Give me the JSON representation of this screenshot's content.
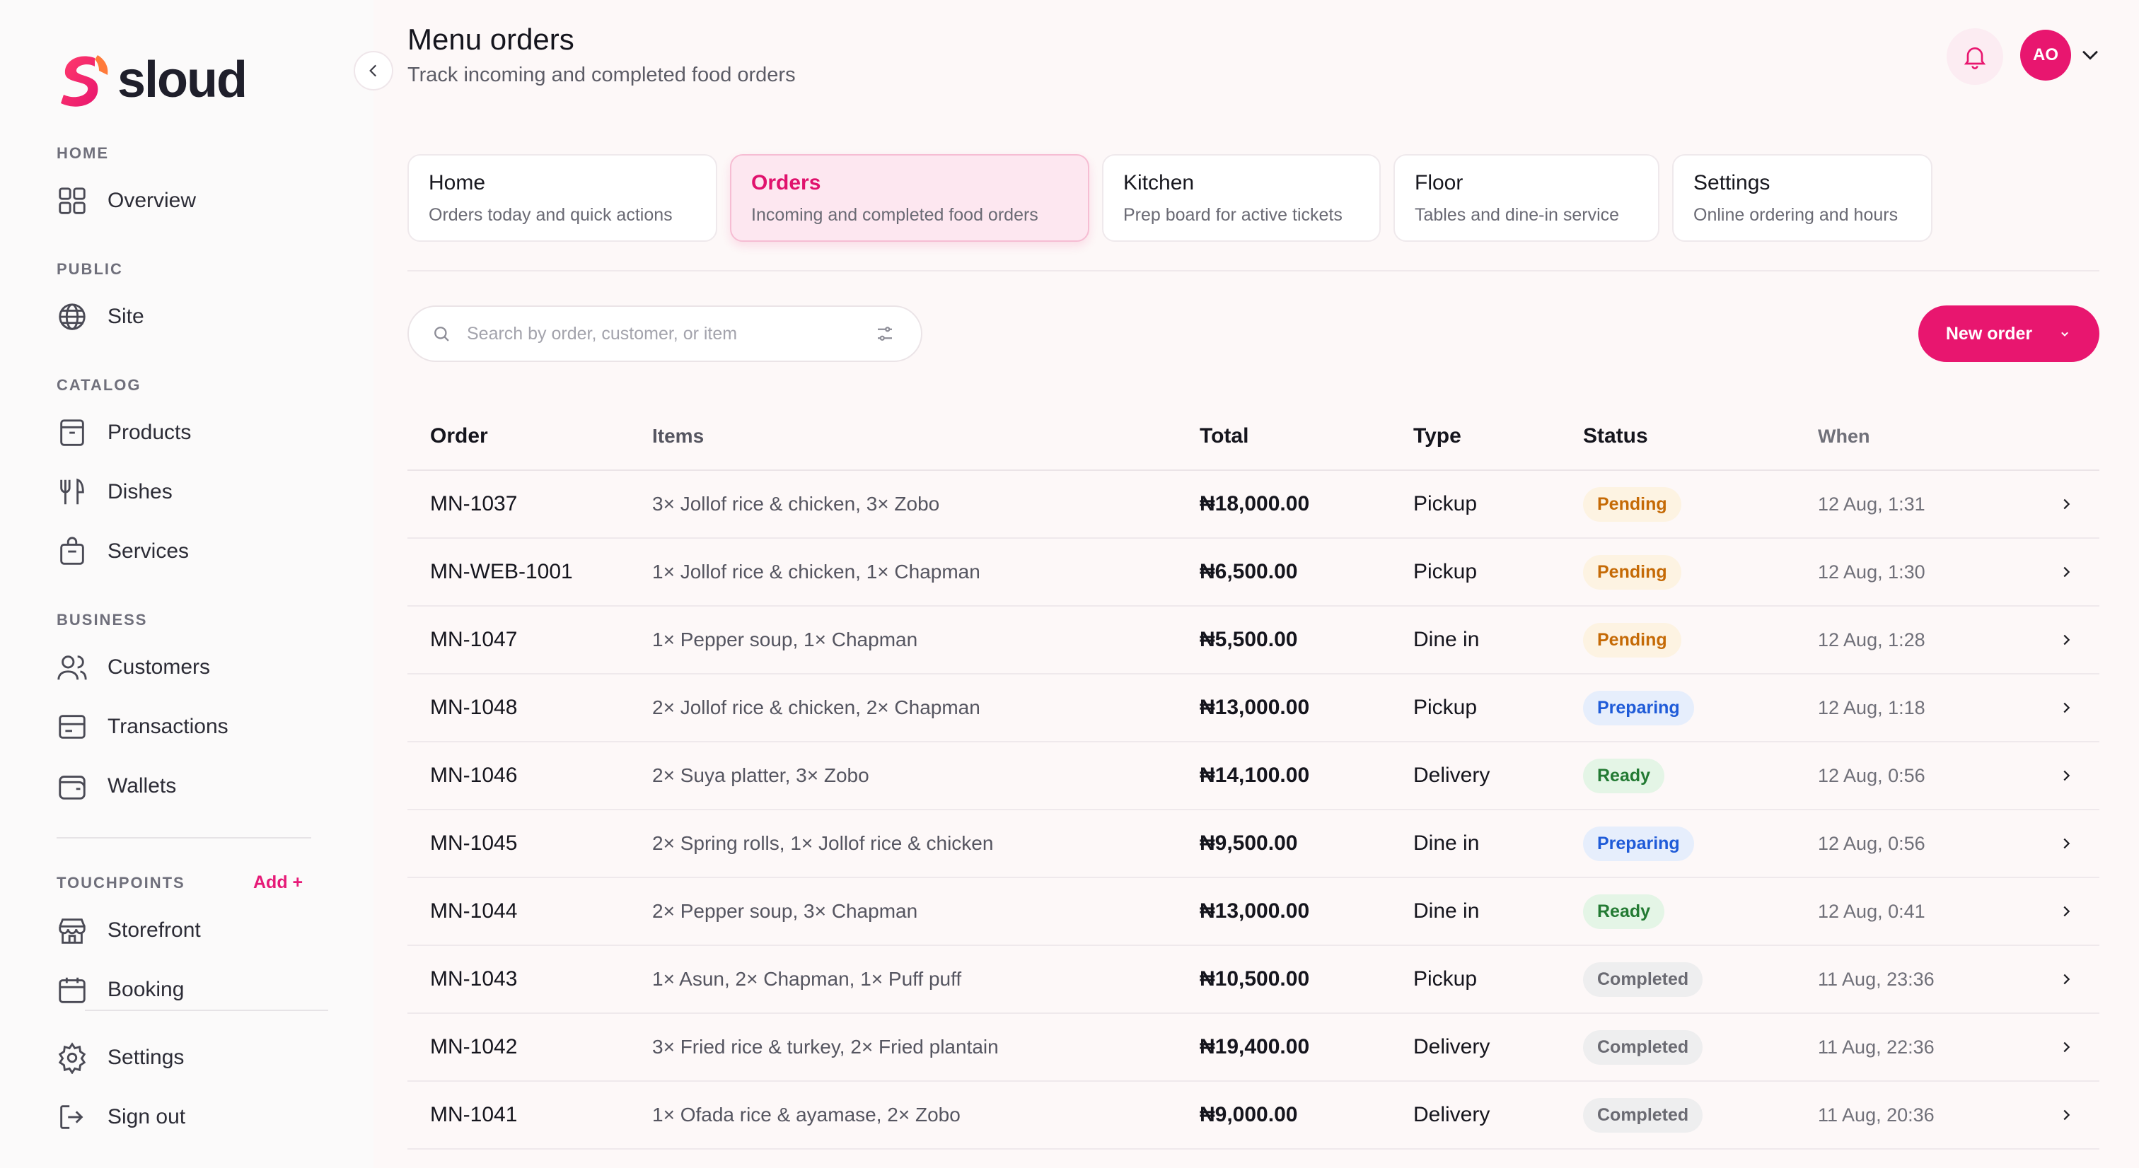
{
  "brand": {
    "name": "sloud",
    "accent": "#e8166f"
  },
  "sidebar": {
    "sections": [
      {
        "label": "HOME",
        "items": [
          {
            "label": "Overview",
            "icon": "grid-icon"
          }
        ]
      },
      {
        "label": "PUBLIC",
        "items": [
          {
            "label": "Site",
            "icon": "globe-icon"
          }
        ]
      },
      {
        "label": "CATALOG",
        "items": [
          {
            "label": "Products",
            "icon": "box-icon"
          },
          {
            "label": "Dishes",
            "icon": "fork-knife-icon"
          },
          {
            "label": "Services",
            "icon": "bag-icon"
          }
        ]
      },
      {
        "label": "BUSINESS",
        "items": [
          {
            "label": "Customers",
            "icon": "users-icon"
          },
          {
            "label": "Transactions",
            "icon": "card-icon"
          },
          {
            "label": "Wallets",
            "icon": "wallet-icon"
          }
        ]
      },
      {
        "label": "TOUCHPOINTS",
        "items": [
          {
            "label": "Storefront",
            "icon": "store-icon"
          },
          {
            "label": "Booking",
            "icon": "calendar-icon"
          }
        ]
      }
    ],
    "touchpoints_add": "Add +",
    "footer": [
      {
        "label": "Settings",
        "icon": "gear-icon"
      },
      {
        "label": "Sign out",
        "icon": "sign-out-icon"
      }
    ]
  },
  "header": {
    "title": "Menu orders",
    "subtitle": "Track incoming and completed food orders",
    "avatar_initials": "AO"
  },
  "tabs": [
    {
      "title": "Home",
      "desc": "Orders today and quick actions",
      "active": false
    },
    {
      "title": "Orders",
      "desc": "Incoming and completed food orders",
      "active": true
    },
    {
      "title": "Kitchen",
      "desc": "Prep board for active tickets",
      "active": false
    },
    {
      "title": "Floor",
      "desc": "Tables and dine-in service",
      "active": false
    },
    {
      "title": "Settings",
      "desc": "Online ordering and hours",
      "active": false
    }
  ],
  "search": {
    "placeholder": "Search by order, customer, or item",
    "value": ""
  },
  "new_order_label": "New order",
  "table": {
    "columns": [
      "Order",
      "Items",
      "Total",
      "Type",
      "Status",
      "When"
    ],
    "rows": [
      {
        "order": "MN-1037",
        "items": "3× Jollof rice & chicken, 3× Zobo",
        "total": "₦18,000.00",
        "type": "Pickup",
        "status": "Pending",
        "when": "12 Aug, 1:31"
      },
      {
        "order": "MN-WEB-1001",
        "items": "1× Jollof rice & chicken, 1× Chapman",
        "total": "₦6,500.00",
        "type": "Pickup",
        "status": "Pending",
        "when": "12 Aug, 1:30"
      },
      {
        "order": "MN-1047",
        "items": "1× Pepper soup, 1× Chapman",
        "total": "₦5,500.00",
        "type": "Dine in",
        "status": "Pending",
        "when": "12 Aug, 1:28"
      },
      {
        "order": "MN-1048",
        "items": "2× Jollof rice & chicken, 2× Chapman",
        "total": "₦13,000.00",
        "type": "Pickup",
        "status": "Preparing",
        "when": "12 Aug, 1:18"
      },
      {
        "order": "MN-1046",
        "items": "2× Suya platter, 3× Zobo",
        "total": "₦14,100.00",
        "type": "Delivery",
        "status": "Ready",
        "when": "12 Aug, 0:56"
      },
      {
        "order": "MN-1045",
        "items": "2× Spring rolls, 1× Jollof rice & chicken",
        "total": "₦9,500.00",
        "type": "Dine in",
        "status": "Preparing",
        "when": "12 Aug, 0:56"
      },
      {
        "order": "MN-1044",
        "items": "2× Pepper soup, 3× Chapman",
        "total": "₦13,000.00",
        "type": "Dine in",
        "status": "Ready",
        "when": "12 Aug, 0:41"
      },
      {
        "order": "MN-1043",
        "items": "1× Asun, 2× Chapman, 1× Puff puff",
        "total": "₦10,500.00",
        "type": "Pickup",
        "status": "Completed",
        "when": "11 Aug, 23:36"
      },
      {
        "order": "MN-1042",
        "items": "3× Fried rice & turkey, 2× Fried plantain",
        "total": "₦19,400.00",
        "type": "Delivery",
        "status": "Completed",
        "when": "11 Aug, 22:36"
      },
      {
        "order": "MN-1041",
        "items": "1× Ofada rice & ayamase, 2× Zobo",
        "total": "₦9,000.00",
        "type": "Delivery",
        "status": "Completed",
        "when": "11 Aug, 20:36"
      }
    ]
  }
}
